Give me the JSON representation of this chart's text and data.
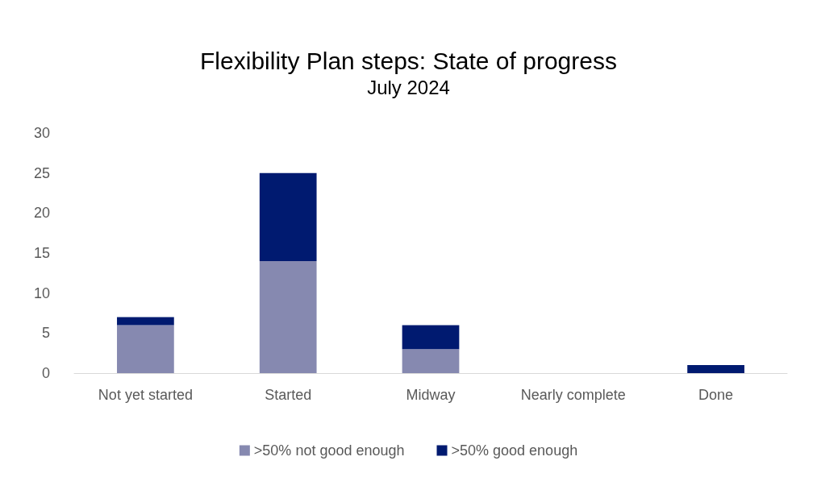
{
  "chart_data": {
    "type": "bar",
    "title": "Flexibility Plan steps: State of progress",
    "subtitle": "July 2024",
    "categories": [
      "Not yet started",
      "Started",
      "Midway",
      "Nearly complete",
      "Done"
    ],
    "series": [
      {
        "name": ">50% not good enough",
        "color": "#8689b0",
        "values": [
          6,
          14,
          3,
          0,
          0
        ]
      },
      {
        "name": ">50% good enough",
        "color": "#001a70",
        "values": [
          1,
          11,
          3,
          0,
          1
        ]
      }
    ],
    "stacked": true,
    "ylim": [
      0,
      30
    ],
    "yticks": [
      0,
      5,
      10,
      15,
      20,
      25,
      30
    ],
    "grid": false,
    "legend": "bottom"
  }
}
